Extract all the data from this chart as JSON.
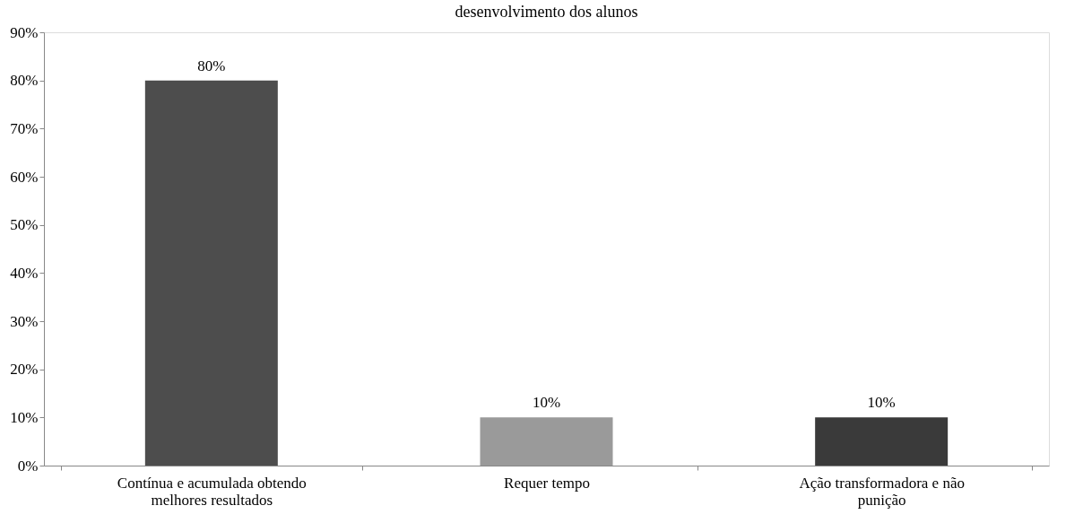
{
  "chart_data": {
    "type": "bar",
    "title": "desenvolvimento dos alunos",
    "categories": [
      "Contínua e acumulada obtendo melhores resultados",
      "Requer tempo",
      "Ação transformadora e não punição"
    ],
    "values": [
      80,
      10,
      10
    ],
    "colors": [
      "#4d4d4d",
      "#9a9a9a",
      "#3a3a3a"
    ],
    "value_labels": [
      "80%",
      "10%",
      "10%"
    ],
    "ylim": [
      0,
      90
    ],
    "yticks": [
      {
        "value": 0,
        "label": "0%"
      },
      {
        "value": 10,
        "label": "10%"
      },
      {
        "value": 20,
        "label": "20%"
      },
      {
        "value": 30,
        "label": "30%"
      },
      {
        "value": 40,
        "label": "40%"
      },
      {
        "value": 50,
        "label": "50%"
      },
      {
        "value": 60,
        "label": "60%"
      },
      {
        "value": 70,
        "label": "70%"
      },
      {
        "value": 80,
        "label": "80%"
      },
      {
        "value": 90,
        "label": "90%"
      }
    ],
    "grid": false
  }
}
